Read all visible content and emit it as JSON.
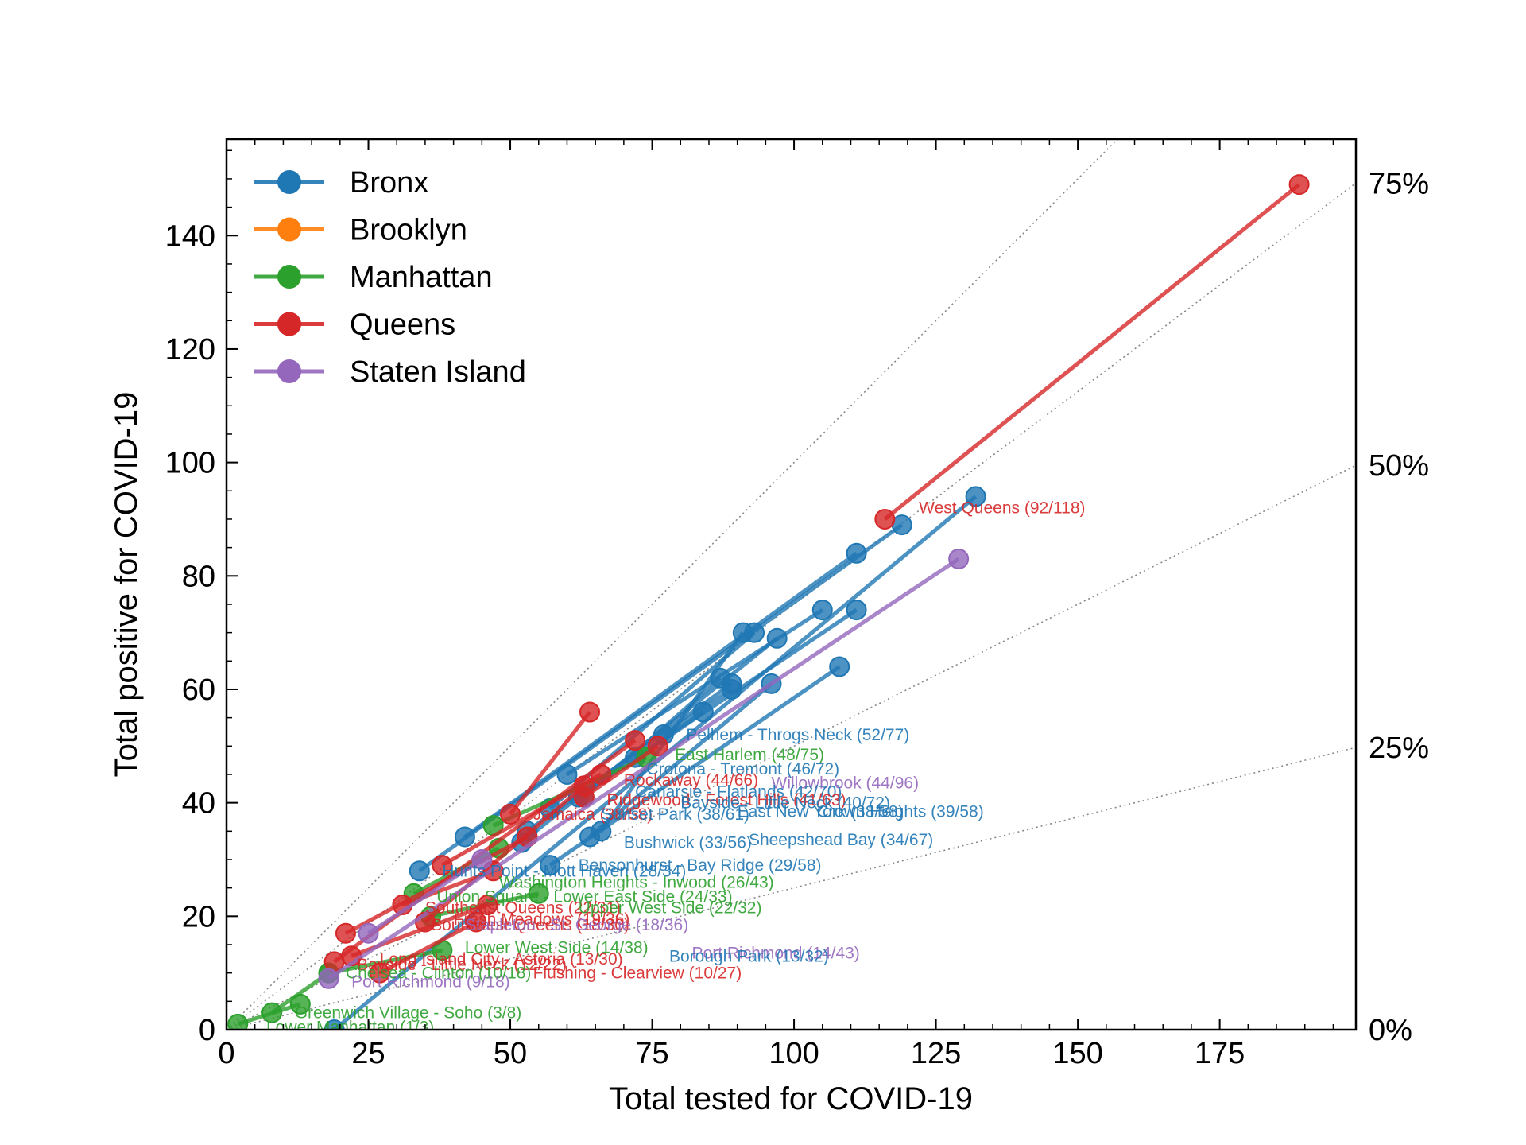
{
  "chart_data": {
    "type": "scatter",
    "xlabel": "Total tested for COVID-19",
    "ylabel": "Total positive for COVID-19",
    "xlim": [
      0,
      199
    ],
    "ylim": [
      0,
      157
    ],
    "x_ticks": [
      0,
      25,
      50,
      75,
      100,
      125,
      150,
      175
    ],
    "y_ticks": [
      0,
      20,
      40,
      60,
      80,
      100,
      120,
      140
    ],
    "reference_lines": [
      {
        "rate": 0.0,
        "label": "0%"
      },
      {
        "rate": 0.25,
        "label": "25%"
      },
      {
        "rate": 0.5,
        "label": "50%"
      },
      {
        "rate": 0.75,
        "label": "75%"
      },
      {
        "rate": 1.0,
        "label": ""
      }
    ],
    "grid": false,
    "legend_position": "top-left",
    "colors": {
      "Bronx": "#1f77b4",
      "Brooklyn": "#ff7f0e",
      "Manhattan": "#2ca02c",
      "Queens": "#d62728",
      "Staten Island": "#9467bd",
      "reference": "#888888"
    },
    "legend": [
      "Bronx",
      "Brooklyn",
      "Manhattan",
      "Queens",
      "Staten Island"
    ],
    "series": [
      {
        "name": "Bronx",
        "lines": [
          [
            [
              19,
              0
            ],
            [
              132,
              94
            ]
          ],
          [
            [
              34,
              28
            ],
            [
              119,
              89
            ]
          ],
          [
            [
              42,
              34
            ],
            [
              111,
              84
            ]
          ],
          [
            [
              57,
              29
            ],
            [
              108,
              64
            ]
          ],
          [
            [
              60,
              45
            ],
            [
              105,
              74
            ]
          ],
          [
            [
              62,
              41
            ],
            [
              111,
              74
            ]
          ],
          [
            [
              52,
              33
            ],
            [
              97,
              69
            ]
          ],
          [
            [
              64,
              34
            ],
            [
              96,
              61
            ]
          ],
          [
            [
              57,
              39
            ],
            [
              93,
              70
            ]
          ],
          [
            [
              66,
              35
            ],
            [
              91,
              70
            ]
          ],
          [
            [
              53,
              35
            ],
            [
              89,
              61
            ]
          ],
          [
            [
              63,
              41
            ],
            [
              87,
              62
            ]
          ],
          [
            [
              72,
              48
            ],
            [
              84,
              56
            ]
          ],
          [
            [
              77,
              52
            ],
            [
              89,
              60
            ]
          ]
        ]
      },
      {
        "name": "Brooklyn",
        "lines": []
      },
      {
        "name": "Manhattan",
        "lines": [
          [
            [
              2,
              1
            ],
            [
              13,
              4.5
            ]
          ],
          [
            [
              8,
              3
            ],
            [
              18,
              10
            ]
          ],
          [
            [
              18,
              10
            ],
            [
              38,
              14
            ]
          ],
          [
            [
              33,
              24
            ],
            [
              48,
              32
            ]
          ],
          [
            [
              47,
              36
            ],
            [
              74,
              48
            ]
          ],
          [
            [
              36,
              20
            ],
            [
              55,
              24
            ]
          ]
        ]
      },
      {
        "name": "Queens",
        "lines": [
          [
            [
              50,
              38
            ],
            [
              64,
              56
            ]
          ],
          [
            [
              19,
              12
            ],
            [
              72,
              51
            ]
          ],
          [
            [
              27,
              10
            ],
            [
              44,
              19
            ]
          ],
          [
            [
              21,
              17
            ],
            [
              53,
              34
            ]
          ],
          [
            [
              31,
              22
            ],
            [
              47,
              28
            ]
          ],
          [
            [
              22,
              13
            ],
            [
              46,
              22
            ]
          ],
          [
            [
              35,
              19
            ],
            [
              63,
              43
            ]
          ],
          [
            [
              38,
              29
            ],
            [
              66,
              45
            ]
          ],
          [
            [
              63,
              41
            ],
            [
              76,
              50
            ]
          ],
          [
            [
              116,
              90
            ],
            [
              189,
              149
            ]
          ]
        ]
      },
      {
        "name": "Staten Island",
        "lines": [
          [
            [
              18,
              9
            ],
            [
              129,
              83
            ]
          ],
          [
            [
              25,
              17
            ],
            [
              45,
              30
            ]
          ]
        ]
      }
    ],
    "annotations": [
      {
        "text": "West Queens (92/118)",
        "x": 122,
        "y": 92,
        "series": "Queens"
      },
      {
        "text": "Pelhem - Throgs Neck (52/77)",
        "x": 81,
        "y": 52,
        "series": "Bronx"
      },
      {
        "text": "East Harlem (48/75)",
        "x": 79,
        "y": 48.5,
        "series": "Manhattan"
      },
      {
        "text": "Crotona - Tremont (46/72)",
        "x": 74,
        "y": 46,
        "series": "Bronx"
      },
      {
        "text": "Rockaway (44/66)",
        "x": 70,
        "y": 44,
        "series": "Queens"
      },
      {
        "text": "Willowbrook (44/96)",
        "x": 96,
        "y": 43.5,
        "series": "Staten Island"
      },
      {
        "text": "Canarsie - Flatlands (42/70)",
        "x": 72,
        "y": 42,
        "series": "Bronx"
      },
      {
        "text": "Ridgewood - Forest Hills (41/63)",
        "x": 67,
        "y": 40.5,
        "series": "Queens"
      },
      {
        "text": "Bayside - Little Neck (40/72)",
        "x": 80,
        "y": 40,
        "series": "Bronx"
      },
      {
        "text": "Jamaica (38/58)",
        "x": 54,
        "y": 38,
        "series": "Queens"
      },
      {
        "text": "Sunset Park (38/61)",
        "x": 66,
        "y": 38,
        "series": "Bronx"
      },
      {
        "text": "East New York (38/58)",
        "x": 90,
        "y": 38.5,
        "series": "Bronx"
      },
      {
        "text": "Crown Heights (39/58)",
        "x": 104,
        "y": 38.5,
        "series": "Bronx"
      },
      {
        "text": "Sheepshead Bay (34/67)",
        "x": 92,
        "y": 33.5,
        "series": "Bronx"
      },
      {
        "text": "Bushwick (33/56)",
        "x": 70,
        "y": 33,
        "series": "Bronx"
      },
      {
        "text": "Bensonhurst - Bay Ridge (29/58)",
        "x": 62,
        "y": 29,
        "series": "Bronx"
      },
      {
        "text": "Hunts Point - Mott Haven (28/34)",
        "x": 38,
        "y": 28,
        "series": "Bronx"
      },
      {
        "text": "Washington Heights - Inwood (26/43)",
        "x": 48,
        "y": 26,
        "series": "Manhattan"
      },
      {
        "text": "Union Square - Lower East Side (24/33)",
        "x": 37,
        "y": 23.5,
        "series": "Manhattan"
      },
      {
        "text": "Southeast Queens (22/31)",
        "x": 35,
        "y": 21.5,
        "series": "Queens"
      },
      {
        "text": "Upper West Side (22/32)",
        "x": 62,
        "y": 21.5,
        "series": "Manhattan"
      },
      {
        "text": "Fresh Meadows (19/36)",
        "x": 40,
        "y": 19.5,
        "series": "Queens"
      },
      {
        "text": "Southwest Queens (18/30)",
        "x": 36,
        "y": 18.5,
        "series": "Queens"
      },
      {
        "text": "Stapleton - St. George (18/36)",
        "x": 42,
        "y": 18.5,
        "series": "Staten Island"
      },
      {
        "text": "Lower West Side (14/38)",
        "x": 42,
        "y": 14.5,
        "series": "Manhattan"
      },
      {
        "text": "Port Richmond (14/43)",
        "x": 82,
        "y": 13.5,
        "series": "Staten Island"
      },
      {
        "text": "Borough Park (13/32)",
        "x": 78,
        "y": 13,
        "series": "Bronx"
      },
      {
        "text": "Long Island City - Astoria (13/30)",
        "x": 27,
        "y": 12.5,
        "series": "Queens"
      },
      {
        "text": "Bayside - Little Neck (12/22)",
        "x": 23,
        "y": 11.5,
        "series": "Queens"
      },
      {
        "text": "Flushing - Clearview (10/27)",
        "x": 54,
        "y": 10,
        "series": "Queens"
      },
      {
        "text": "Chelsea - Clinton (10/18)",
        "x": 21,
        "y": 10,
        "series": "Manhattan"
      },
      {
        "text": "Port Richmond (9/18)",
        "x": 22,
        "y": 8.5,
        "series": "Staten Island"
      },
      {
        "text": "Greenwich Village - Soho (3/8)",
        "x": 12,
        "y": 3,
        "series": "Manhattan"
      },
      {
        "text": "Lower Manhattan (1/3)",
        "x": 7,
        "y": 0.5,
        "series": "Manhattan"
      }
    ]
  }
}
